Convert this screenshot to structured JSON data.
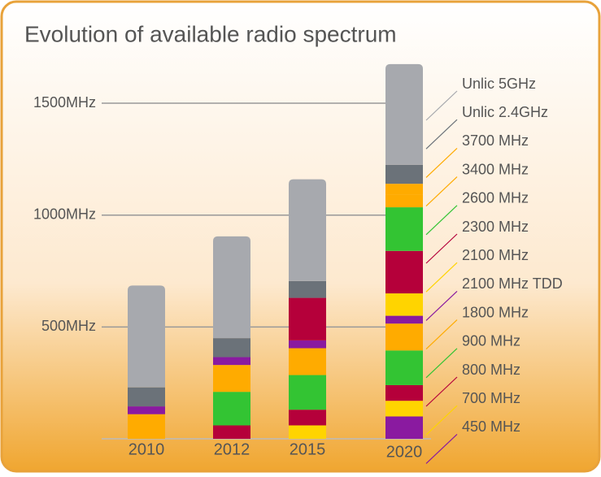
{
  "chart_data": {
    "type": "stacked_bar",
    "title": "Evolution of available radio spectrum",
    "categories": [
      "2010",
      "2012",
      "2015",
      "2020"
    ],
    "series": [
      {
        "name": "450 MHz",
        "color": "#8a1aa0",
        "values": [
          0,
          0,
          0,
          100
        ]
      },
      {
        "name": "700 MHz",
        "color": "#ffd400",
        "values": [
          0,
          0,
          60,
          70
        ]
      },
      {
        "name": "800 MHz",
        "color": "#b5003a",
        "values": [
          0,
          60,
          70,
          70
        ]
      },
      {
        "name": "900 MHz",
        "color": "#33c433",
        "values": [
          0,
          150,
          155,
          155
        ]
      },
      {
        "name": "1800 MHz",
        "color": "#ffab00",
        "values": [
          110,
          120,
          120,
          120
        ]
      },
      {
        "name": "2100 MHz TDD",
        "color": "#8a1aa0",
        "values": [
          35,
          35,
          35,
          35
        ]
      },
      {
        "name": "2100 MHz",
        "color": "#ffd400",
        "values": [
          0,
          0,
          0,
          100
        ]
      },
      {
        "name": "2300 MHz",
        "color": "#b5003a",
        "values": [
          0,
          0,
          190,
          190
        ]
      },
      {
        "name": "2600 MHz",
        "color": "#33c433",
        "values": [
          0,
          0,
          0,
          195
        ]
      },
      {
        "name": "3400 MHz",
        "color": "#ffab00",
        "values": [
          0,
          0,
          0,
          55
        ]
      },
      {
        "name": "3700 MHz",
        "color": "#ffab00",
        "values": [
          0,
          0,
          0,
          50
        ]
      },
      {
        "name": "Unlic 2.4GHz",
        "color": "#6b7279",
        "values": [
          85,
          85,
          75,
          85
        ]
      },
      {
        "name": "Unlic 5GHz",
        "color": "#a7a9ae",
        "values": [
          455,
          455,
          455,
          450
        ]
      }
    ],
    "ylim": [
      0,
      1700
    ],
    "yticks": [
      {
        "value": 500,
        "label": "500MHz"
      },
      {
        "value": 1000,
        "label": "1000MHz"
      },
      {
        "value": 1500,
        "label": "1500MHz"
      }
    ],
    "grid": true
  }
}
